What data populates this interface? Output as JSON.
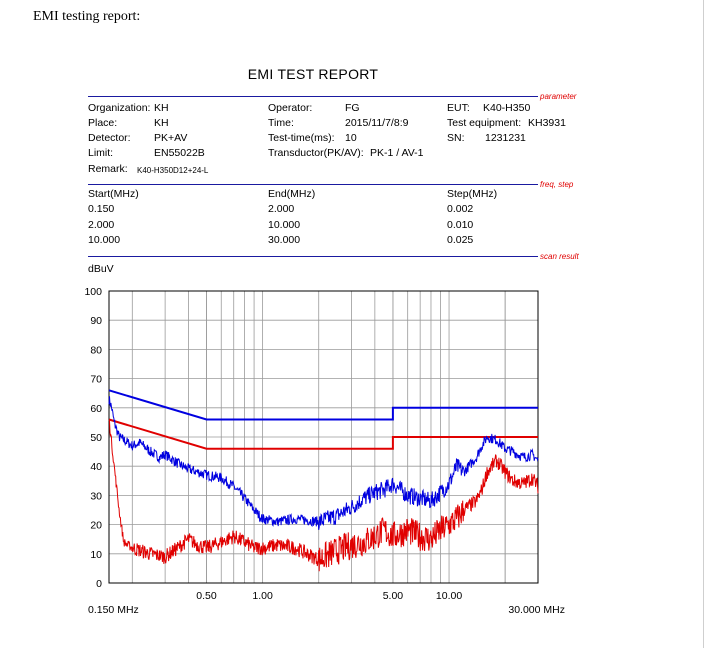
{
  "page": {
    "heading": "EMI testing report:"
  },
  "report": {
    "title": "EMI TEST REPORT",
    "section_tags": {
      "parameter": "parameter",
      "freq_step": "freq, step",
      "scan_result": "scan result"
    },
    "params": {
      "organization_label": "Organization:",
      "organization": "KH",
      "place_label": "Place:",
      "place": "KH",
      "detector_label": "Detector:",
      "detector": "PK+AV",
      "limit_label": "Limit:",
      "limit": "EN55022B",
      "remark_label": "Remark:",
      "remark": "K40-H350D12+24-L",
      "operator_label": "Operator:",
      "operator": "FG",
      "time_label": "Time:",
      "time": "2015/11/7/8:9",
      "test_time_label": "Test-time(ms):",
      "test_time": "10",
      "transductor_label": "Transductor(PK/AV):",
      "transductor": "PK-1  /  AV-1",
      "eut_label": "EUT:",
      "eut": "K40-H350",
      "test_equipment_label": "Test equipment:",
      "test_equipment": "KH3931",
      "sn_label": "SN:",
      "sn": "1231231"
    },
    "freq_table": {
      "headers": [
        "Start(MHz)",
        "End(MHz)",
        "Step(MHz)"
      ],
      "rows": [
        [
          "0.150",
          "2.000",
          "0.002"
        ],
        [
          "2.000",
          "10.000",
          "0.010"
        ],
        [
          "10.000",
          "30.000",
          "0.025"
        ]
      ]
    }
  },
  "chart_data": {
    "type": "line",
    "ylabel": "dBuV",
    "xscale": "log",
    "xlim": [
      0.15,
      30
    ],
    "ylim": [
      0,
      100
    ],
    "yticks": [
      0,
      10,
      20,
      30,
      40,
      50,
      60,
      70,
      80,
      90,
      100
    ],
    "xtick_labels": [
      {
        "x": 0.15,
        "label": "0.150 MHz"
      },
      {
        "x": 0.5,
        "label": "0.50"
      },
      {
        "x": 1,
        "label": "1.00"
      },
      {
        "x": 5,
        "label": "5.00"
      },
      {
        "x": 10,
        "label": "10.00"
      },
      {
        "x": 30,
        "label": "30.000 MHz"
      }
    ],
    "grid": true,
    "colors": {
      "pk": "#0000e0",
      "av": "#e00000"
    },
    "series": [
      {
        "kind": "limit-pk",
        "points": [
          [
            0.15,
            66
          ],
          [
            0.5,
            56
          ],
          [
            5,
            56
          ],
          [
            5,
            60
          ],
          [
            30,
            60
          ]
        ]
      },
      {
        "kind": "limit-av",
        "points": [
          [
            0.15,
            56
          ],
          [
            0.5,
            46
          ],
          [
            5,
            46
          ],
          [
            5,
            50
          ],
          [
            30,
            50
          ]
        ]
      },
      {
        "kind": "measured-pk",
        "points": [
          [
            0.15,
            63
          ],
          [
            0.155,
            60
          ],
          [
            0.16,
            55
          ],
          [
            0.17,
            50
          ],
          [
            0.18,
            49
          ],
          [
            0.2,
            47
          ],
          [
            0.22,
            48
          ],
          [
            0.25,
            45
          ],
          [
            0.28,
            43
          ],
          [
            0.3,
            44
          ],
          [
            0.35,
            41
          ],
          [
            0.4,
            39
          ],
          [
            0.45,
            38
          ],
          [
            0.5,
            37
          ],
          [
            0.6,
            36
          ],
          [
            0.7,
            33
          ],
          [
            0.8,
            29
          ],
          [
            0.9,
            25
          ],
          [
            1.0,
            22
          ],
          [
            1.2,
            21
          ],
          [
            1.5,
            22
          ],
          [
            2.0,
            21
          ],
          [
            2.5,
            23
          ],
          [
            3.0,
            26
          ],
          [
            3.5,
            29
          ],
          [
            4.0,
            31
          ],
          [
            4.5,
            32
          ],
          [
            5.0,
            34
          ],
          [
            6.0,
            30
          ],
          [
            7.0,
            29
          ],
          [
            8.0,
            28
          ],
          [
            9.0,
            31
          ],
          [
            10.0,
            34
          ],
          [
            11.0,
            40
          ],
          [
            12.0,
            38
          ],
          [
            14.0,
            43
          ],
          [
            15.0,
            47
          ],
          [
            16.0,
            50
          ],
          [
            18.0,
            49
          ],
          [
            20.0,
            46
          ],
          [
            22.0,
            45
          ],
          [
            25.0,
            43
          ],
          [
            28.0,
            44
          ],
          [
            30.0,
            42
          ]
        ]
      },
      {
        "kind": "measured-av",
        "points": [
          [
            0.15,
            56
          ],
          [
            0.16,
            40
          ],
          [
            0.17,
            25
          ],
          [
            0.18,
            14
          ],
          [
            0.2,
            12
          ],
          [
            0.25,
            10
          ],
          [
            0.3,
            9
          ],
          [
            0.35,
            12
          ],
          [
            0.4,
            15
          ],
          [
            0.45,
            13
          ],
          [
            0.5,
            12
          ],
          [
            0.6,
            14
          ],
          [
            0.7,
            16
          ],
          [
            0.8,
            14
          ],
          [
            0.9,
            12
          ],
          [
            1.0,
            12
          ],
          [
            1.2,
            13
          ],
          [
            1.5,
            12
          ],
          [
            2.0,
            8
          ],
          [
            2.5,
            11
          ],
          [
            3.0,
            13
          ],
          [
            3.5,
            14
          ],
          [
            4.0,
            16
          ],
          [
            4.5,
            18
          ],
          [
            5.0,
            16
          ],
          [
            6.0,
            18
          ],
          [
            7.0,
            16
          ],
          [
            8.0,
            15
          ],
          [
            9.0,
            18
          ],
          [
            10.0,
            20
          ],
          [
            11.0,
            22
          ],
          [
            12.0,
            25
          ],
          [
            14.0,
            28
          ],
          [
            15.0,
            32
          ],
          [
            16.0,
            38
          ],
          [
            18.0,
            42
          ],
          [
            20.0,
            38
          ],
          [
            22.0,
            35
          ],
          [
            25.0,
            34
          ],
          [
            28.0,
            36
          ],
          [
            30.0,
            33
          ]
        ]
      }
    ]
  }
}
